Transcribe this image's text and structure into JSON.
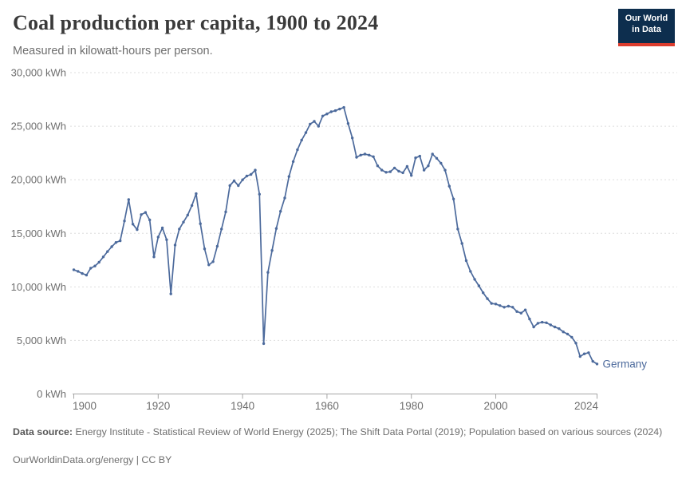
{
  "header": {
    "title": "Coal production per capita, 1900 to 2024",
    "subtitle": "Measured in kilowatt-hours per person.",
    "logo": {
      "line1": "Our World",
      "line2": "in Data"
    }
  },
  "chart_data": {
    "type": "line",
    "title": "Coal production per capita, 1900 to 2024",
    "ylabel": "kWh per person",
    "entity_label": "Germany",
    "line_color": "#4C6A9C",
    "grid": "dashed-horizontal",
    "xlim": [
      1900,
      2024
    ],
    "ylim": [
      0,
      30000
    ],
    "x_ticks": [
      1900,
      1920,
      1940,
      1960,
      1980,
      2000,
      2024
    ],
    "y_ticks": [
      {
        "value": 0,
        "label": "0 kWh"
      },
      {
        "value": 5000,
        "label": "5,000 kWh"
      },
      {
        "value": 10000,
        "label": "10,000 kWh"
      },
      {
        "value": 15000,
        "label": "15,000 kWh"
      },
      {
        "value": 20000,
        "label": "20,000 kWh"
      },
      {
        "value": 25000,
        "label": "25,000 kWh"
      },
      {
        "value": 30000,
        "label": "30,000 kWh"
      }
    ],
    "series": [
      {
        "name": "Germany",
        "x": [
          1900,
          1901,
          1902,
          1903,
          1904,
          1905,
          1906,
          1907,
          1908,
          1909,
          1910,
          1911,
          1912,
          1913,
          1914,
          1915,
          1916,
          1917,
          1918,
          1919,
          1920,
          1921,
          1922,
          1923,
          1924,
          1925,
          1926,
          1927,
          1928,
          1929,
          1930,
          1931,
          1932,
          1933,
          1934,
          1935,
          1936,
          1937,
          1938,
          1939,
          1940,
          1941,
          1942,
          1943,
          1944,
          1945,
          1946,
          1947,
          1948,
          1949,
          1950,
          1951,
          1952,
          1953,
          1954,
          1955,
          1956,
          1957,
          1958,
          1959,
          1960,
          1961,
          1962,
          1963,
          1964,
          1965,
          1966,
          1967,
          1968,
          1969,
          1970,
          1971,
          1972,
          1973,
          1974,
          1975,
          1976,
          1977,
          1978,
          1979,
          1980,
          1981,
          1982,
          1983,
          1984,
          1985,
          1986,
          1987,
          1988,
          1989,
          1990,
          1991,
          1992,
          1993,
          1994,
          1995,
          1996,
          1997,
          1998,
          1999,
          2000,
          2001,
          2002,
          2003,
          2004,
          2005,
          2006,
          2007,
          2008,
          2009,
          2010,
          2011,
          2012,
          2013,
          2014,
          2015,
          2016,
          2017,
          2018,
          2019,
          2020,
          2021,
          2022,
          2023,
          2024
        ],
        "values": [
          11600,
          11450,
          11250,
          11100,
          11750,
          11950,
          12300,
          12800,
          13300,
          13750,
          14150,
          14300,
          16150,
          18150,
          15850,
          15350,
          16750,
          16950,
          16250,
          12800,
          14650,
          15500,
          14400,
          9350,
          13900,
          15400,
          16050,
          16700,
          17600,
          18700,
          15900,
          13550,
          12050,
          12350,
          13800,
          15400,
          17000,
          19450,
          19900,
          19450,
          20000,
          20350,
          20500,
          20900,
          18650,
          4700,
          11350,
          13400,
          15450,
          17050,
          18300,
          20300,
          21700,
          22800,
          23700,
          24400,
          25200,
          25450,
          25000,
          25950,
          26150,
          26350,
          26450,
          26600,
          26750,
          25250,
          23900,
          22100,
          22300,
          22400,
          22300,
          22150,
          21300,
          20900,
          20700,
          20750,
          21100,
          20800,
          20650,
          21250,
          20400,
          22050,
          22200,
          20900,
          21300,
          22400,
          22000,
          21550,
          20900,
          19400,
          18200,
          15400,
          14050,
          12450,
          11450,
          10700,
          10100,
          9450,
          8900,
          8450,
          8400,
          8250,
          8100,
          8200,
          8100,
          7700,
          7550,
          7850,
          7000,
          6250,
          6600,
          6700,
          6650,
          6450,
          6250,
          6100,
          5800,
          5600,
          5300,
          4750,
          3500,
          3750,
          3850,
          3050,
          2800
        ]
      }
    ]
  },
  "footer": {
    "source_prefix": "Data source:",
    "source_text": " Energy Institute - Statistical Review of World Energy (2025); The Shift Data Portal (2019); Population based on various sources (2024)",
    "license_line": "OurWorldinData.org/energy | CC BY"
  }
}
